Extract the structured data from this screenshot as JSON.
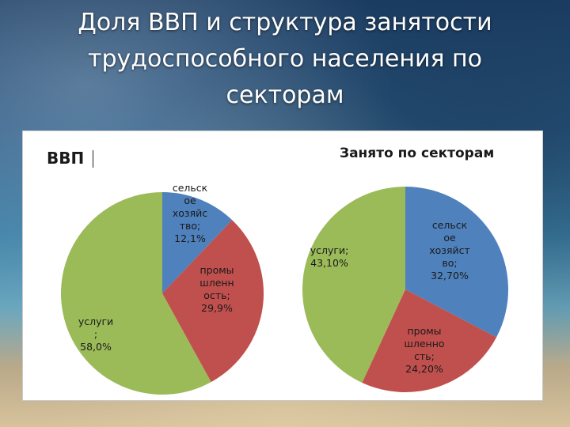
{
  "slide": {
    "title": "Доля ВВП и структура занятости\nтрудоспособного населения по\nсекторам"
  },
  "chart_data": [
    {
      "type": "pie",
      "title": "ВВП",
      "categories": [
        "сельское хозяйство",
        "промышленность",
        "услуги"
      ],
      "values": [
        12.1,
        29.9,
        58.0
      ],
      "labels": [
        [
          "сельск",
          "ое",
          "хозяйс",
          "тво;",
          "12,1%"
        ],
        [
          "промы",
          "шленн",
          "ость;",
          "29,9%"
        ],
        [
          "услуги",
          ";",
          "58,0%"
        ]
      ],
      "colors": [
        "#4f81bd",
        "#c0504d",
        "#9bbb59"
      ]
    },
    {
      "type": "pie",
      "title": "Занято по секторам",
      "categories": [
        "сельское хозяйство",
        "промышленность",
        "услуги"
      ],
      "values": [
        32.7,
        24.2,
        43.1
      ],
      "labels": [
        [
          "сельск",
          "ое",
          "хозяйст",
          "во;",
          "32,70%"
        ],
        [
          "промы",
          "шленно",
          "сть;",
          "24,20%"
        ],
        [
          "услуги;",
          "43,10%"
        ]
      ],
      "colors": [
        "#4f81bd",
        "#c0504d",
        "#9bbb59"
      ]
    }
  ]
}
